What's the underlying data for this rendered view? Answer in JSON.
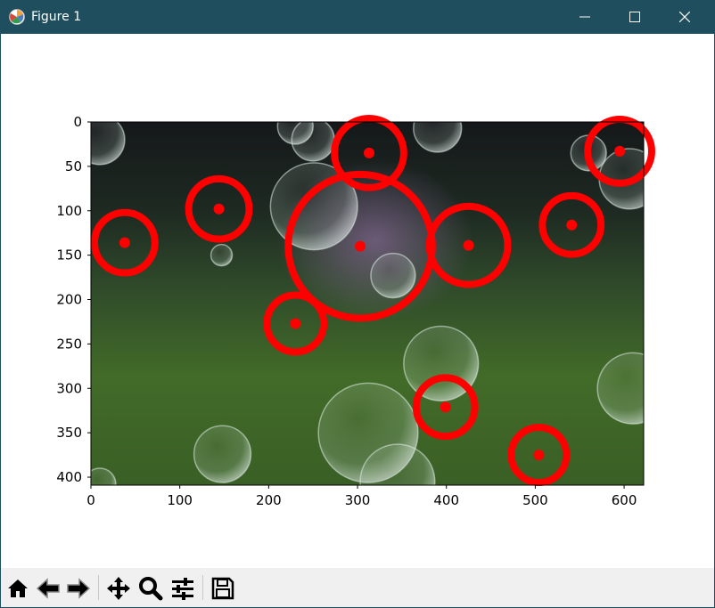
{
  "window": {
    "title": "Figure 1",
    "app_icon": "matplotlib-logo-icon",
    "controls": [
      "minimize-icon",
      "maximize-icon",
      "close-icon"
    ]
  },
  "toolbar": {
    "buttons": [
      {
        "name": "home",
        "icon": "home-icon"
      },
      {
        "name": "back",
        "icon": "back-arrow-icon"
      },
      {
        "name": "forward",
        "icon": "forward-arrow-icon"
      },
      {
        "name": "pan",
        "icon": "move-arrows-icon"
      },
      {
        "name": "zoom",
        "icon": "magnifier-icon"
      },
      {
        "name": "configure-subplots",
        "icon": "sliders-icon"
      },
      {
        "name": "save",
        "icon": "floppy-disk-icon"
      }
    ]
  },
  "chart_data": {
    "type": "scatter",
    "description_kind": "image-with-circle-overlays",
    "x_ticks": [
      0,
      100,
      200,
      300,
      400,
      500,
      600
    ],
    "y_ticks": [
      0,
      50,
      100,
      150,
      200,
      250,
      300,
      350,
      400
    ],
    "xlim": [
      0,
      622
    ],
    "ylim": [
      409,
      0
    ],
    "marker_color": "#ff0000",
    "circles": [
      {
        "x": 38,
        "y": 136,
        "r": 34
      },
      {
        "x": 144,
        "y": 98,
        "r": 34
      },
      {
        "x": 230,
        "y": 227,
        "r": 32
      },
      {
        "x": 303,
        "y": 140,
        "r": 81
      },
      {
        "x": 313,
        "y": 35,
        "r": 39
      },
      {
        "x": 425,
        "y": 139,
        "r": 44
      },
      {
        "x": 541,
        "y": 116,
        "r": 33
      },
      {
        "x": 595,
        "y": 33,
        "r": 36
      },
      {
        "x": 399,
        "y": 321,
        "r": 33
      },
      {
        "x": 504,
        "y": 375,
        "r": 31
      }
    ],
    "bubbles": [
      {
        "x": 10,
        "y": 20,
        "r": 28
      },
      {
        "x": 251,
        "y": 95,
        "r": 49
      },
      {
        "x": 250,
        "y": 20,
        "r": 24
      },
      {
        "x": 390,
        "y": 7,
        "r": 27
      },
      {
        "x": 147,
        "y": 150,
        "r": 12
      },
      {
        "x": 340,
        "y": 173,
        "r": 25
      },
      {
        "x": 394,
        "y": 272,
        "r": 42
      },
      {
        "x": 312,
        "y": 350,
        "r": 56
      },
      {
        "x": 148,
        "y": 374,
        "r": 32
      },
      {
        "x": 345,
        "y": 405,
        "r": 42
      },
      {
        "x": 606,
        "y": 64,
        "r": 34
      },
      {
        "x": 610,
        "y": 300,
        "r": 40
      },
      {
        "x": 10,
        "y": 408,
        "r": 18
      },
      {
        "x": 560,
        "y": 35,
        "r": 20
      },
      {
        "x": 230,
        "y": 5,
        "r": 20
      }
    ]
  }
}
